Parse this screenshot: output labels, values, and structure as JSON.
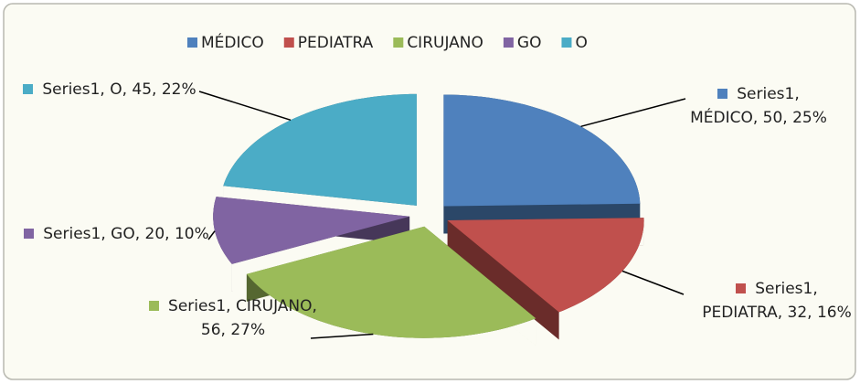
{
  "chart_data": {
    "type": "pie",
    "categories": [
      "MÉDICO",
      "PEDIATRA",
      "CIRUJANO",
      "GO",
      "O"
    ],
    "values": [
      50,
      32,
      56,
      20,
      45
    ],
    "value_labels": [
      "Series1, MÉDICO, 50, 25%",
      "Series1, PEDIATRA, 32, 16%",
      "Series1, CIRUJANO, 56, 27%",
      "Series1, GO, 20, 10%",
      "Series1, O, 45, 22%"
    ],
    "colors": [
      "#4f81bd",
      "#c0504d",
      "#9bbb59",
      "#8064a2",
      "#4bacc6"
    ],
    "legend": "top"
  }
}
